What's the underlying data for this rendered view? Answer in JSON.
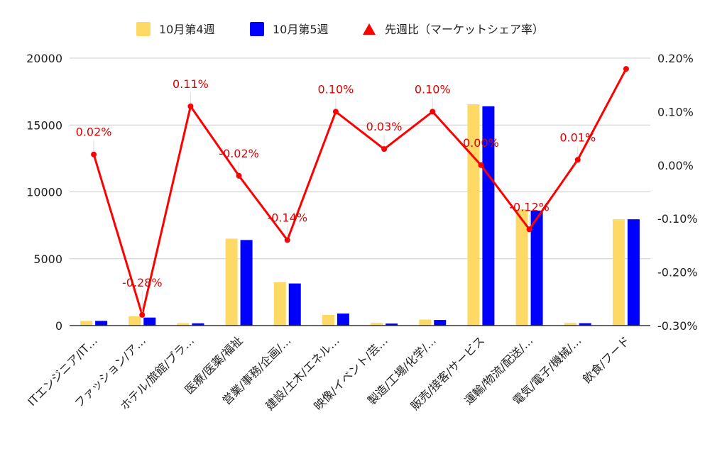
{
  "chart_data": {
    "type": "bar",
    "categories": [
      "ITエンジニア/IT…",
      "ファッション/ア…",
      "ホテル/旅館/ブラ…",
      "医療/医薬/福祉",
      "営業/事務/企画/…",
      "建設/土木/エネル…",
      "映像/イベント/芸…",
      "製造/工場/化学/…",
      "販売/接客/サービス",
      "運輸/物流/配送/…",
      "電気/電子/機械/…",
      "飲食/フード"
    ],
    "series": [
      {
        "name": "10月第4週",
        "color": "#FFD966",
        "axis": "left",
        "values": [
          350,
          700,
          180,
          6500,
          3250,
          800,
          200,
          450,
          16550,
          8700,
          200,
          7950
        ]
      },
      {
        "name": "10月第5週",
        "color": "#0000FF",
        "axis": "left",
        "values": [
          350,
          600,
          170,
          6400,
          3150,
          900,
          150,
          420,
          16400,
          8600,
          180,
          7950
        ]
      },
      {
        "name": "先週比（マーケットシェア率）",
        "color": "#FF0000",
        "axis": "right",
        "type": "line",
        "values": [
          0.0002,
          -0.0028,
          0.0011,
          -0.0002,
          -0.0014,
          0.001,
          0.0003,
          0.001,
          0.0,
          -0.0012,
          0.0001,
          0.0018
        ],
        "labels": [
          "0.02%",
          "-0.28%",
          "0.11%",
          "-0.02%",
          "-0.14%",
          "0.10%",
          "0.03%",
          "0.10%",
          "0.00%",
          "-0.12%",
          "0.01%",
          ""
        ]
      }
    ],
    "left_axis": {
      "min": 0,
      "max": 20000,
      "ticks": [
        "0",
        "5000",
        "10000",
        "15000",
        "20000"
      ]
    },
    "right_axis": {
      "min": -0.003,
      "max": 0.002,
      "ticks": [
        "-0.30%",
        "-0.20%",
        "-0.10%",
        "0.00%",
        "0.10%",
        "0.20%"
      ]
    },
    "legend_position": "top",
    "grid": true,
    "title": "",
    "xlabel": "",
    "ylabel": ""
  }
}
